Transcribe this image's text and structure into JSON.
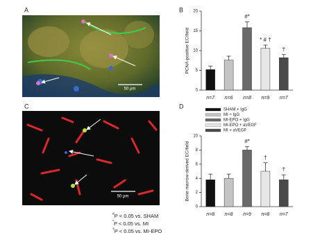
{
  "panel_labels": [
    "A",
    "B",
    "C",
    "D"
  ],
  "images": [
    {
      "scale_bar": "50 μm"
    },
    {
      "scale_bar": "50 μm"
    }
  ],
  "chart_data": [
    {
      "type": "bar",
      "y_label": "PCNA-positive EC/field",
      "values": [
        5.2,
        7.6,
        15.8,
        10.6,
        8.2
      ],
      "errors": [
        0.9,
        1.0,
        1.5,
        0.8,
        0.8
      ],
      "colors": [
        "#111111",
        "#c4c4c4",
        "#6a6a6a",
        "#e6e6e6",
        "#4a4a4a"
      ],
      "n_labels": [
        "n=7",
        "n=6",
        "n=8",
        "n=9",
        "n=7"
      ],
      "annotations": [
        null,
        null,
        "#*",
        "* # †",
        "†"
      ],
      "ylim": [
        0,
        20
      ],
      "yticks": [
        0,
        5,
        10,
        15,
        20
      ]
    },
    {
      "type": "bar",
      "y_label": "Bone marrow-derived EC/field",
      "categories": [
        "SHAM + IgG",
        "MI + IgG",
        "MI-EPO + IgG",
        "MI-EPO + aVEGF",
        "MI + aVEGF"
      ],
      "values": [
        3.8,
        4.0,
        8.0,
        5.0,
        3.8
      ],
      "errors": [
        0.8,
        0.6,
        0.5,
        1.2,
        0.7
      ],
      "colors": [
        "#111111",
        "#c4c4c4",
        "#6a6a6a",
        "#e6e6e6",
        "#4a4a4a"
      ],
      "n_labels": [
        "n=8",
        "n=8",
        "n=9",
        "n=8",
        "n=7"
      ],
      "annotations": [
        null,
        null,
        "#*",
        "†",
        "†"
      ],
      "ylim": [
        0,
        10
      ],
      "yticks": [
        0,
        2,
        4,
        6,
        8,
        10
      ]
    }
  ],
  "footnotes": [
    {
      "symbol": "#",
      "text": "P < 0.05 vs. SHAM"
    },
    {
      "symbol": "*",
      "text": "P < 0.05 vs. MI"
    },
    {
      "symbol": "†",
      "text": "P < 0.05 vs. MI-EPO"
    }
  ]
}
